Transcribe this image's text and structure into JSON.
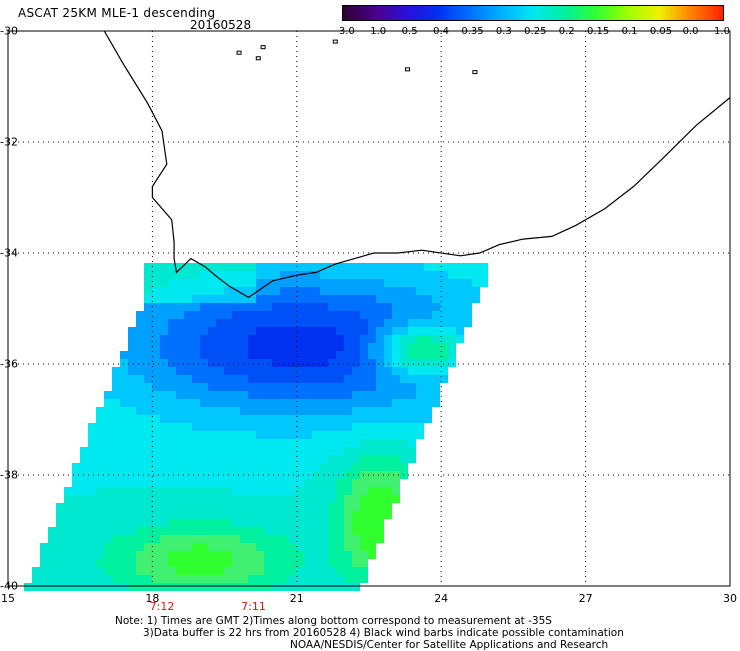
{
  "header": {
    "title": "ASCAT 25KM MLE-1 descending",
    "date": "20160528"
  },
  "colorbar": {
    "labels": [
      "-3.0",
      "-1.0",
      "-0.5",
      "-0.4",
      "-0.35",
      "-0.3",
      "-0.25",
      "-0.2",
      "-0.15",
      "-0.1",
      "-0.05",
      "0.0",
      "1.0"
    ],
    "colors": [
      "#2a0030",
      "#4b0088",
      "#2a10d8",
      "#0030f0",
      "#0070ff",
      "#00b0ff",
      "#00e8f0",
      "#00f0a0",
      "#30ff30",
      "#a0ff00",
      "#f0f000",
      "#ff8000",
      "#ff2000"
    ]
  },
  "map": {
    "lat_labels": [
      "-30",
      "-32",
      "-34",
      "-36",
      "-38",
      "-40"
    ],
    "lon_labels": [
      "15",
      "18",
      "21",
      "24",
      "27",
      "30"
    ],
    "lat_values": [
      -30,
      -32,
      -34,
      -36,
      -38,
      -40
    ],
    "lon_values": [
      15,
      18,
      21,
      24,
      27,
      30
    ],
    "lon_range": [
      15,
      30
    ],
    "lat_range": [
      -40,
      -30
    ],
    "grid": "dotted",
    "times": [
      "7:12",
      "7:11"
    ],
    "time_lons": [
      18.2,
      20.1
    ]
  },
  "notes": {
    "line1": "Note: 1) Times are GMT 2)Times along bottom correspond to measurement at -35S",
    "line2": "3)Data buffer is 22 hrs from 20160528 4) Black wind barbs indicate possible contamination",
    "line3": "NOAA/NESDIS/Center for Satellite Applications and Research"
  }
}
